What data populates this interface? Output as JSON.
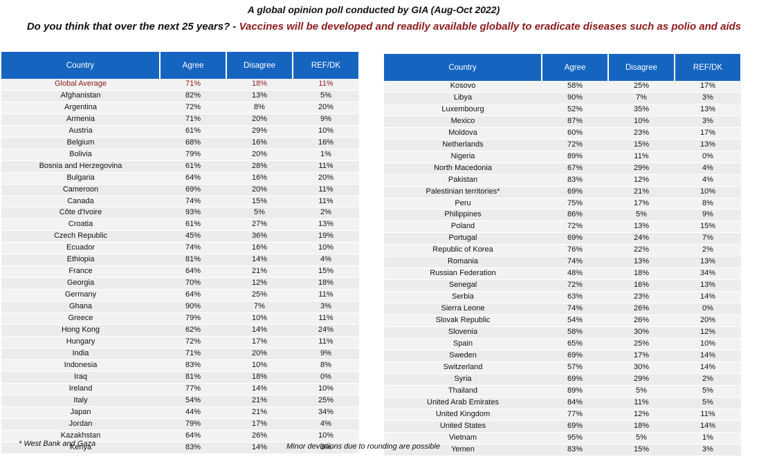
{
  "title": "A global opinion poll conducted by GIA (Aug-Oct 2022)",
  "question": {
    "prefix": "Do you think that over the next 25 years? - ",
    "statement": "Vaccines will be developed and readily available globally to eradicate diseases such as polio and aids"
  },
  "columns": [
    "Country",
    "Agree",
    "Disagree",
    "REF/DK"
  ],
  "left_table": [
    [
      "Global Average",
      "71%",
      "18%",
      "11%"
    ],
    [
      "Afghanistan",
      "82%",
      "13%",
      "5%"
    ],
    [
      "Argentina",
      "72%",
      "8%",
      "20%"
    ],
    [
      "Armenia",
      "71%",
      "20%",
      "9%"
    ],
    [
      "Austria",
      "61%",
      "29%",
      "10%"
    ],
    [
      "Belgium",
      "68%",
      "16%",
      "16%"
    ],
    [
      "Bolivia",
      "79%",
      "20%",
      "1%"
    ],
    [
      "Bosnia and Herzegovina",
      "61%",
      "28%",
      "11%"
    ],
    [
      "Bulgaria",
      "64%",
      "16%",
      "20%"
    ],
    [
      "Cameroon",
      "69%",
      "20%",
      "11%"
    ],
    [
      "Canada",
      "74%",
      "15%",
      "11%"
    ],
    [
      "Côte d'Ivoire",
      "93%",
      "5%",
      "2%"
    ],
    [
      "Croatia",
      "61%",
      "27%",
      "13%"
    ],
    [
      "Czech Republic",
      "45%",
      "36%",
      "19%"
    ],
    [
      "Ecuador",
      "74%",
      "16%",
      "10%"
    ],
    [
      "Ethiopia",
      "81%",
      "14%",
      "4%"
    ],
    [
      "France",
      "64%",
      "21%",
      "15%"
    ],
    [
      "Georgia",
      "70%",
      "12%",
      "18%"
    ],
    [
      "Germany",
      "64%",
      "25%",
      "11%"
    ],
    [
      "Ghana",
      "90%",
      "7%",
      "3%"
    ],
    [
      "Greece",
      "79%",
      "10%",
      "11%"
    ],
    [
      "Hong Kong",
      "62%",
      "14%",
      "24%"
    ],
    [
      "Hungary",
      "72%",
      "17%",
      "11%"
    ],
    [
      "India",
      "71%",
      "20%",
      "9%"
    ],
    [
      "Indonesia",
      "83%",
      "10%",
      "8%"
    ],
    [
      "Iraq",
      "81%",
      "18%",
      "0%"
    ],
    [
      "Ireland",
      "77%",
      "14%",
      "10%"
    ],
    [
      "Italy",
      "54%",
      "21%",
      "25%"
    ],
    [
      "Japan",
      "44%",
      "21%",
      "34%"
    ],
    [
      "Jordan",
      "79%",
      "17%",
      "4%"
    ],
    [
      "Kazakhstan",
      "64%",
      "26%",
      "10%"
    ],
    [
      "Kenya",
      "83%",
      "14%",
      "3%"
    ]
  ],
  "right_table": [
    [
      "Kosovo",
      "58%",
      "25%",
      "17%"
    ],
    [
      "Libya",
      "90%",
      "7%",
      "3%"
    ],
    [
      "Luxembourg",
      "52%",
      "35%",
      "13%"
    ],
    [
      "Mexico",
      "87%",
      "10%",
      "3%"
    ],
    [
      "Moldova",
      "60%",
      "23%",
      "17%"
    ],
    [
      "Netherlands",
      "72%",
      "15%",
      "13%"
    ],
    [
      "Nigeria",
      "89%",
      "11%",
      "0%"
    ],
    [
      "North Macedonia",
      "67%",
      "29%",
      "4%"
    ],
    [
      "Pakistan",
      "83%",
      "12%",
      "4%"
    ],
    [
      "Palestinian territories*",
      "69%",
      "21%",
      "10%"
    ],
    [
      "Peru",
      "75%",
      "17%",
      "8%"
    ],
    [
      "Philippines",
      "86%",
      "5%",
      "9%"
    ],
    [
      "Poland",
      "72%",
      "13%",
      "15%"
    ],
    [
      "Portugal",
      "69%",
      "24%",
      "7%"
    ],
    [
      "Republic of Korea",
      "76%",
      "22%",
      "2%"
    ],
    [
      "Romania",
      "74%",
      "13%",
      "13%"
    ],
    [
      "Russian Federation",
      "48%",
      "18%",
      "34%"
    ],
    [
      "Senegal",
      "72%",
      "16%",
      "13%"
    ],
    [
      "Serbia",
      "63%",
      "23%",
      "14%"
    ],
    [
      "Sierra Leone",
      "74%",
      "26%",
      "0%"
    ],
    [
      "Slovak Republic",
      "54%",
      "26%",
      "20%"
    ],
    [
      "Slovenia",
      "58%",
      "30%",
      "12%"
    ],
    [
      "Spain",
      "65%",
      "25%",
      "10%"
    ],
    [
      "Sweden",
      "69%",
      "17%",
      "14%"
    ],
    [
      "Switzerland",
      "57%",
      "30%",
      "14%"
    ],
    [
      "Syria",
      "69%",
      "29%",
      "2%"
    ],
    [
      "Thailand",
      "89%",
      "5%",
      "5%"
    ],
    [
      "United Arab Emirates",
      "84%",
      "11%",
      "5%"
    ],
    [
      "United Kingdom",
      "77%",
      "12%",
      "11%"
    ],
    [
      "United States",
      "69%",
      "18%",
      "14%"
    ],
    [
      "Vietnam",
      "95%",
      "5%",
      "1%"
    ],
    [
      "Yemen",
      "83%",
      "15%",
      "3%"
    ]
  ],
  "footnote": "* West Bank and Gaza",
  "rounding_note": "Minor deviations due to rounding are possible",
  "colors": {
    "header_bg": "#1565c0",
    "highlight_text": "#8b1a1a",
    "row_bg": "#f2f2f2"
  }
}
